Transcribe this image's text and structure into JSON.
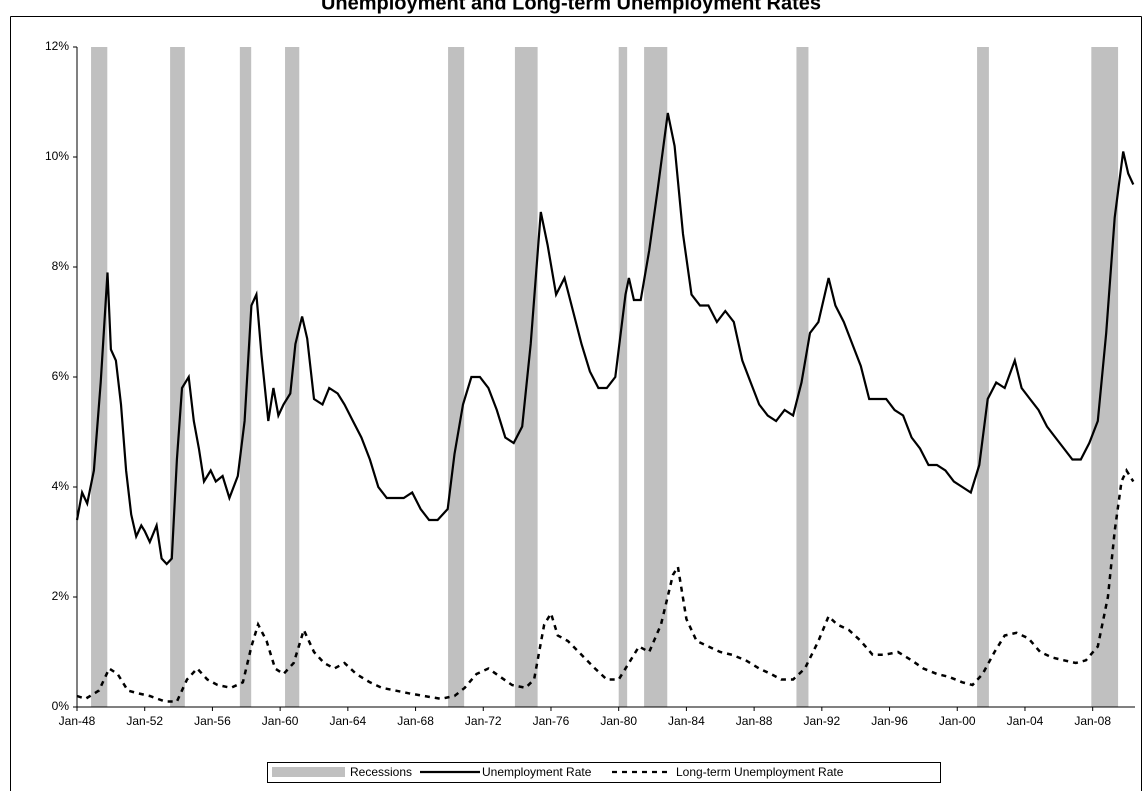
{
  "chart_data": {
    "type": "line",
    "title": "Unemployment and Long-term Unemployment Rates",
    "xlim": [
      1948,
      2010.5
    ],
    "xticks": [
      {
        "value": 1948,
        "label": "Jan-48"
      },
      {
        "value": 1952,
        "label": "Jan-52"
      },
      {
        "value": 1956,
        "label": "Jan-56"
      },
      {
        "value": 1960,
        "label": "Jan-60"
      },
      {
        "value": 1964,
        "label": "Jan-64"
      },
      {
        "value": 1968,
        "label": "Jan-68"
      },
      {
        "value": 1972,
        "label": "Jan-72"
      },
      {
        "value": 1976,
        "label": "Jan-76"
      },
      {
        "value": 1980,
        "label": "Jan-80"
      },
      {
        "value": 1984,
        "label": "Jan-84"
      },
      {
        "value": 1988,
        "label": "Jan-88"
      },
      {
        "value": 1992,
        "label": "Jan-92"
      },
      {
        "value": 1996,
        "label": "Jan-96"
      },
      {
        "value": 2000,
        "label": "Jan-00"
      },
      {
        "value": 2004,
        "label": "Jan-04"
      },
      {
        "value": 2008,
        "label": "Jan-08"
      }
    ],
    "ylim": [
      0,
      12
    ],
    "yticks": [
      {
        "value": 0,
        "label": "0%"
      },
      {
        "value": 2,
        "label": "2%"
      },
      {
        "value": 4,
        "label": "4%"
      },
      {
        "value": 6,
        "label": "6%"
      },
      {
        "value": 8,
        "label": "8%"
      },
      {
        "value": 10,
        "label": "10%"
      },
      {
        "value": 12,
        "label": "12%"
      }
    ],
    "recessions": {
      "name": "Recessions",
      "color": "#c0c0c0",
      "periods": [
        [
          1948.83,
          1949.79
        ],
        [
          1953.5,
          1954.37
        ],
        [
          1957.62,
          1958.29
        ],
        [
          1960.29,
          1961.13
        ],
        [
          1969.92,
          1970.87
        ],
        [
          1973.87,
          1975.21
        ],
        [
          1980.0,
          1980.5
        ],
        [
          1981.5,
          1982.87
        ],
        [
          1990.5,
          1991.21
        ],
        [
          2001.17,
          2001.87
        ],
        [
          2007.92,
          2009.5
        ]
      ]
    },
    "series": [
      {
        "name": "Unemployment Rate",
        "color": "#000000",
        "dash": "solid",
        "x": [
          1948.0,
          1948.3,
          1948.6,
          1949.0,
          1949.4,
          1949.8,
          1950.0,
          1950.3,
          1950.6,
          1950.9,
          1951.2,
          1951.5,
          1951.8,
          1952.0,
          1952.3,
          1952.7,
          1953.0,
          1953.3,
          1953.6,
          1953.9,
          1954.2,
          1954.6,
          1954.9,
          1955.2,
          1955.5,
          1955.9,
          1956.2,
          1956.6,
          1957.0,
          1957.5,
          1957.9,
          1958.3,
          1958.6,
          1958.9,
          1959.3,
          1959.6,
          1959.9,
          1960.2,
          1960.6,
          1960.9,
          1961.3,
          1961.6,
          1962.0,
          1962.5,
          1962.9,
          1963.4,
          1963.8,
          1964.3,
          1964.8,
          1965.3,
          1965.8,
          1966.3,
          1966.8,
          1967.3,
          1967.8,
          1968.3,
          1968.8,
          1969.3,
          1969.9,
          1970.3,
          1970.8,
          1971.3,
          1971.8,
          1972.3,
          1972.8,
          1973.3,
          1973.8,
          1974.3,
          1974.8,
          1975.3,
          1975.4,
          1975.8,
          1976.3,
          1976.8,
          1977.3,
          1977.8,
          1978.3,
          1978.8,
          1979.3,
          1979.8,
          1980.4,
          1980.6,
          1980.9,
          1981.3,
          1981.8,
          1982.3,
          1982.9,
          1983.3,
          1983.8,
          1984.3,
          1984.8,
          1985.3,
          1985.8,
          1986.3,
          1986.8,
          1987.3,
          1987.8,
          1988.3,
          1988.8,
          1989.3,
          1989.8,
          1990.3,
          1990.8,
          1991.3,
          1991.8,
          1992.4,
          1992.8,
          1993.3,
          1993.8,
          1994.3,
          1994.8,
          1995.3,
          1995.8,
          1996.3,
          1996.8,
          1997.3,
          1997.8,
          1998.3,
          1998.8,
          1999.3,
          1999.8,
          2000.3,
          2000.8,
          2001.3,
          2001.8,
          2002.3,
          2002.8,
          2003.4,
          2003.8,
          2004.3,
          2004.8,
          2005.3,
          2005.8,
          2006.3,
          2006.8,
          2007.3,
          2007.8,
          2008.3,
          2008.8,
          2009.3,
          2009.8,
          2010.1,
          2010.4
        ],
        "values": [
          3.4,
          3.9,
          3.7,
          4.3,
          5.9,
          7.9,
          6.5,
          6.3,
          5.5,
          4.3,
          3.5,
          3.1,
          3.3,
          3.2,
          3.0,
          3.3,
          2.7,
          2.6,
          2.7,
          4.5,
          5.8,
          6.0,
          5.2,
          4.7,
          4.1,
          4.3,
          4.1,
          4.2,
          3.8,
          4.2,
          5.2,
          7.3,
          7.5,
          6.4,
          5.2,
          5.8,
          5.3,
          5.5,
          5.7,
          6.6,
          7.1,
          6.7,
          5.6,
          5.5,
          5.8,
          5.7,
          5.5,
          5.2,
          4.9,
          4.5,
          4.0,
          3.8,
          3.8,
          3.8,
          3.9,
          3.6,
          3.4,
          3.4,
          3.6,
          4.6,
          5.5,
          6.0,
          6.0,
          5.8,
          5.4,
          4.9,
          4.8,
          5.1,
          6.6,
          8.6,
          9.0,
          8.4,
          7.5,
          7.8,
          7.2,
          6.6,
          6.1,
          5.8,
          5.8,
          6.0,
          7.5,
          7.8,
          7.4,
          7.4,
          8.3,
          9.4,
          10.8,
          10.2,
          8.6,
          7.5,
          7.3,
          7.3,
          7.0,
          7.2,
          7.0,
          6.3,
          5.9,
          5.5,
          5.3,
          5.2,
          5.4,
          5.3,
          5.9,
          6.8,
          7.0,
          7.8,
          7.3,
          7.0,
          6.6,
          6.2,
          5.6,
          5.6,
          5.6,
          5.4,
          5.3,
          4.9,
          4.7,
          4.4,
          4.4,
          4.3,
          4.1,
          4.0,
          3.9,
          4.4,
          5.6,
          5.9,
          5.8,
          6.3,
          5.8,
          5.6,
          5.4,
          5.1,
          4.9,
          4.7,
          4.5,
          4.5,
          4.8,
          5.2,
          6.8,
          8.9,
          10.1,
          9.7,
          9.5
        ]
      },
      {
        "name": "Long-term Unemployment Rate",
        "color": "#000000",
        "dash": "dashed",
        "x": [
          1948.0,
          1948.5,
          1949.3,
          1949.9,
          1950.4,
          1951.0,
          1951.6,
          1952.3,
          1953.2,
          1953.9,
          1954.5,
          1955.1,
          1955.7,
          1956.3,
          1957.1,
          1957.8,
          1958.3,
          1958.7,
          1959.2,
          1959.7,
          1960.2,
          1960.8,
          1961.4,
          1962.0,
          1962.6,
          1963.2,
          1963.8,
          1964.5,
          1965.3,
          1966.0,
          1966.8,
          1967.6,
          1968.5,
          1969.5,
          1970.3,
          1970.9,
          1971.6,
          1972.3,
          1973.0,
          1973.7,
          1974.5,
          1975.0,
          1975.6,
          1976.0,
          1976.4,
          1977.0,
          1977.8,
          1978.6,
          1979.3,
          1980.0,
          1980.6,
          1981.2,
          1981.8,
          1982.5,
          1983.2,
          1983.5,
          1984.0,
          1984.6,
          1985.3,
          1986.0,
          1986.7,
          1987.5,
          1988.3,
          1989.0,
          1989.6,
          1990.3,
          1991.0,
          1991.8,
          1992.4,
          1992.9,
          1993.6,
          1994.3,
          1995.0,
          1995.7,
          1996.5,
          1997.3,
          1998.0,
          1998.8,
          1999.5,
          2000.3,
          2000.9,
          2001.5,
          2002.2,
          2002.8,
          2003.5,
          2004.2,
          2004.9,
          2005.6,
          2006.3,
          2007.0,
          2007.6,
          2008.3,
          2008.9,
          2009.3,
          2009.7,
          2010.0,
          2010.4
        ],
        "values": [
          0.2,
          0.15,
          0.3,
          0.7,
          0.6,
          0.3,
          0.25,
          0.2,
          0.1,
          0.1,
          0.5,
          0.7,
          0.5,
          0.4,
          0.35,
          0.45,
          1.1,
          1.5,
          1.2,
          0.7,
          0.6,
          0.8,
          1.4,
          1.0,
          0.8,
          0.7,
          0.8,
          0.6,
          0.45,
          0.35,
          0.3,
          0.25,
          0.2,
          0.15,
          0.2,
          0.35,
          0.6,
          0.7,
          0.55,
          0.4,
          0.35,
          0.5,
          1.5,
          1.7,
          1.3,
          1.2,
          0.95,
          0.7,
          0.5,
          0.5,
          0.8,
          1.1,
          1.0,
          1.5,
          2.4,
          2.55,
          1.6,
          1.2,
          1.1,
          1.0,
          0.95,
          0.85,
          0.7,
          0.6,
          0.5,
          0.5,
          0.7,
          1.2,
          1.65,
          1.5,
          1.4,
          1.2,
          0.95,
          0.95,
          1.0,
          0.85,
          0.7,
          0.6,
          0.55,
          0.45,
          0.4,
          0.6,
          1.0,
          1.3,
          1.35,
          1.25,
          1.0,
          0.9,
          0.85,
          0.8,
          0.85,
          1.1,
          2.0,
          3.2,
          4.1,
          4.3,
          4.1
        ]
      }
    ]
  }
}
